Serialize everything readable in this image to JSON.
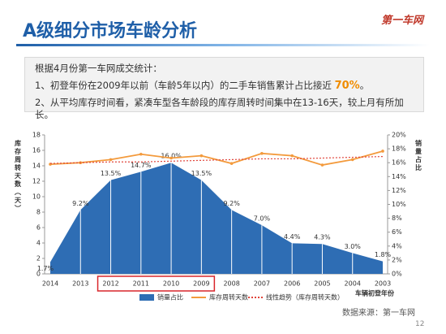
{
  "header": {
    "title": "A级细分市场车龄分析",
    "logo": "第一车网"
  },
  "notes": {
    "intro": "根据4月份第一车网成交统计：",
    "item1": [
      "1、初登年份在2009年以前（车龄5年以内）的二手车销售累计占比接近 ",
      "70%",
      "。"
    ],
    "item2": "2、从平均库存时间看，紧凑车型各车龄段的库存周转时间集中在13-16天，较上月有所加长。"
  },
  "chart_data": {
    "type": "area-line",
    "ylabel": "库存周转天数（天）",
    "y2label": "销量占比",
    "xlabel": "车辆初登年份",
    "categories": [
      "2014",
      "2013",
      "2012",
      "2011",
      "2010",
      "2009",
      "2008",
      "2007",
      "2006",
      "2005",
      "2004",
      "2003"
    ],
    "ylim": [
      0,
      18
    ],
    "yticks": [
      0,
      2,
      4,
      6,
      8,
      10,
      12,
      14,
      16,
      18
    ],
    "y2lim": [
      0,
      20
    ],
    "y2ticks": [
      {
        "value": 0,
        "label": "0%"
      },
      {
        "value": 2,
        "label": "2%"
      },
      {
        "value": 4,
        "label": "4%"
      },
      {
        "value": 6,
        "label": "6%"
      },
      {
        "value": 8,
        "label": "8%"
      },
      {
        "value": 10,
        "label": "10%"
      },
      {
        "value": 12,
        "label": "12%"
      },
      {
        "value": 14,
        "label": "14%"
      },
      {
        "value": 16,
        "label": "16%"
      },
      {
        "value": 18,
        "label": "18%"
      },
      {
        "value": 20,
        "label": "20%"
      }
    ],
    "series": [
      {
        "name": "销量占比",
        "color": "#2e6db4",
        "axis": "y2",
        "kind": "area",
        "values": [
          1.7,
          9.2,
          13.5,
          14.7,
          16.0,
          13.5,
          9.2,
          7.0,
          4.4,
          4.3,
          3.0,
          1.8
        ],
        "value_labels": [
          "1.7%",
          "9.2%",
          "13.5%",
          "14.7%",
          "16.0%",
          "13.5%",
          "9.2%",
          "7.0%",
          "4.4%",
          "4.3%",
          "3.0%",
          "1.8%"
        ]
      },
      {
        "name": "库存周转天数",
        "color": "#f39a3c",
        "kind": "line",
        "values": [
          14.2,
          14.4,
          14.8,
          15.5,
          15.0,
          15.3,
          14.3,
          15.6,
          15.3,
          14.1,
          14.8,
          15.9
        ]
      },
      {
        "name": "线性趋势（库存周转天数）",
        "color": "#e0443a",
        "kind": "dotted",
        "values": [
          14.3,
          14.4,
          14.5,
          14.5,
          14.6,
          14.7,
          14.8,
          14.9,
          14.9,
          15.0,
          15.1,
          15.2
        ]
      }
    ]
  },
  "footer": {
    "source": "数据来源：第一车网",
    "page": "12"
  }
}
